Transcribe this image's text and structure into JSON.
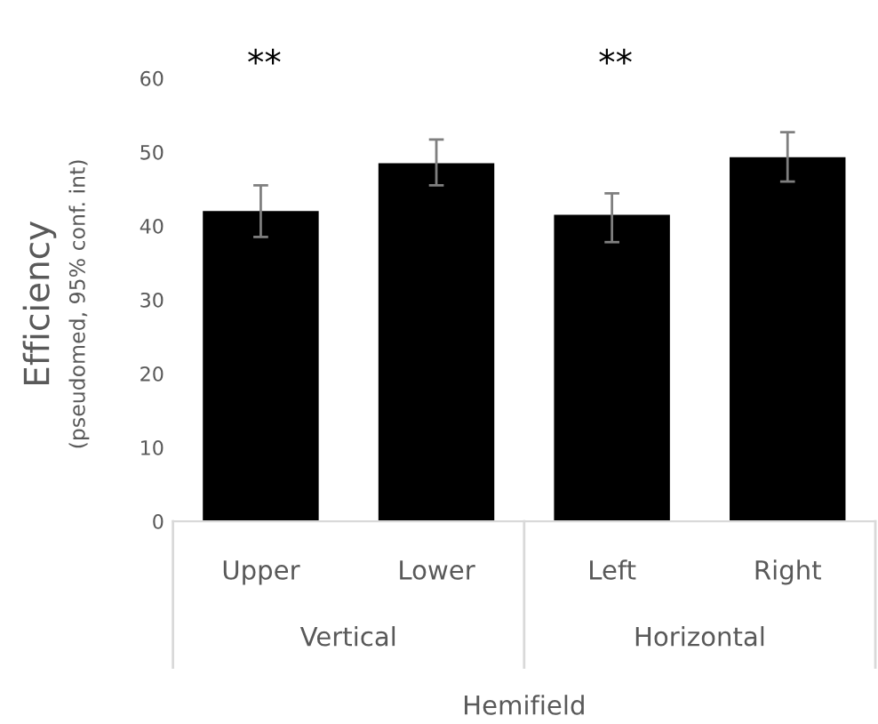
{
  "chart_data": {
    "type": "bar",
    "ylabel": "Efficiency\n(pseudomed, 95% conf. int)",
    "xlabel": "Hemifield",
    "categories": [
      "Upper",
      "Lower",
      "Left",
      "Right"
    ],
    "values": [
      42,
      48.5,
      41.5,
      49.3
    ],
    "errors": [
      [
        38.5,
        45.5
      ],
      [
        45.5,
        51.7
      ],
      [
        37.8,
        44.4
      ],
      [
        46,
        52.7
      ]
    ],
    "color": "#000000",
    "ylim": [
      0,
      60
    ],
    "yticks": [
      0,
      10,
      20,
      30,
      40,
      50,
      60
    ],
    "grid": false,
    "legend": false,
    "annotations": [
      "**",
      "**",
      "Vertical",
      "Horizontal"
    ]
  }
}
